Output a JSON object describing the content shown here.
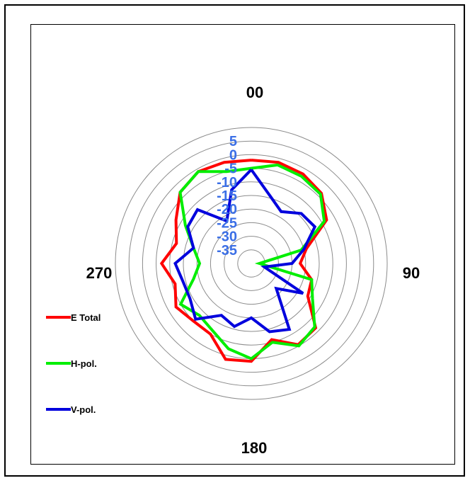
{
  "chart_data": {
    "type": "polar-line",
    "title": "",
    "angle_labels": [
      {
        "angle": 0,
        "text": "00"
      },
      {
        "angle": 90,
        "text": "90"
      },
      {
        "angle": 180,
        "text": "180"
      },
      {
        "angle": 270,
        "text": "270"
      }
    ],
    "radial_ticks": [
      "5",
      "0",
      "-5",
      "-10",
      "-15",
      "-20",
      "-25",
      "-30",
      "-35"
    ],
    "radial_tick_values": [
      5,
      0,
      -5,
      -10,
      -15,
      -20,
      -25,
      -30,
      -35
    ],
    "radial_range": [
      -40,
      10
    ],
    "grid_circles": [
      -35,
      -30,
      -25,
      -20,
      -15,
      -10,
      -5,
      0,
      5,
      10
    ],
    "grid": true,
    "legend_position": "left",
    "series": [
      {
        "name": "E Total",
        "color": "#ff0000",
        "angles": [
          0,
          15,
          30,
          45,
          60,
          75,
          90,
          105,
          120,
          135,
          150,
          165,
          180,
          195,
          210,
          225,
          240,
          255,
          270,
          285,
          300,
          315,
          330,
          345
        ],
        "values": [
          -2,
          -1.5,
          -2,
          -3.5,
          -8,
          -19,
          -22,
          -17,
          -16,
          -6.5,
          -5.5,
          -11,
          -4,
          -3.5,
          -10,
          -10,
          -8,
          -11,
          -7,
          -11.5,
          -8,
          -3,
          -1,
          -1.5
        ]
      },
      {
        "name": "H-pol.",
        "color": "#00ee00",
        "angles": [
          0,
          15,
          30,
          45,
          60,
          75,
          90,
          105,
          120,
          135,
          150,
          165,
          180,
          195,
          210,
          225,
          240,
          255,
          270,
          285,
          300,
          315,
          330,
          345
        ],
        "values": [
          -5,
          -2.5,
          -3,
          -4,
          -9,
          -21,
          -37,
          -17,
          -14,
          -7,
          -5,
          -10,
          -5,
          -7.5,
          -11.5,
          -13,
          -10,
          -18,
          -21,
          -18,
          -12,
          -3,
          -1,
          -5
        ]
      },
      {
        "name": "V-pol.",
        "color": "#0000dd",
        "angles": [
          0,
          15,
          30,
          45,
          60,
          75,
          90,
          105,
          120,
          135,
          150,
          165,
          180,
          195,
          210,
          225,
          240,
          255,
          270,
          285,
          300,
          315,
          330,
          345
        ],
        "values": [
          -5.5,
          -14,
          -18,
          -14,
          -13,
          -20,
          -25,
          -35,
          -18,
          -27,
          -12,
          -14,
          -20,
          -16,
          -18,
          -11,
          -14,
          -14,
          -12,
          -18,
          -13,
          -12,
          -22,
          -12
        ]
      }
    ]
  }
}
